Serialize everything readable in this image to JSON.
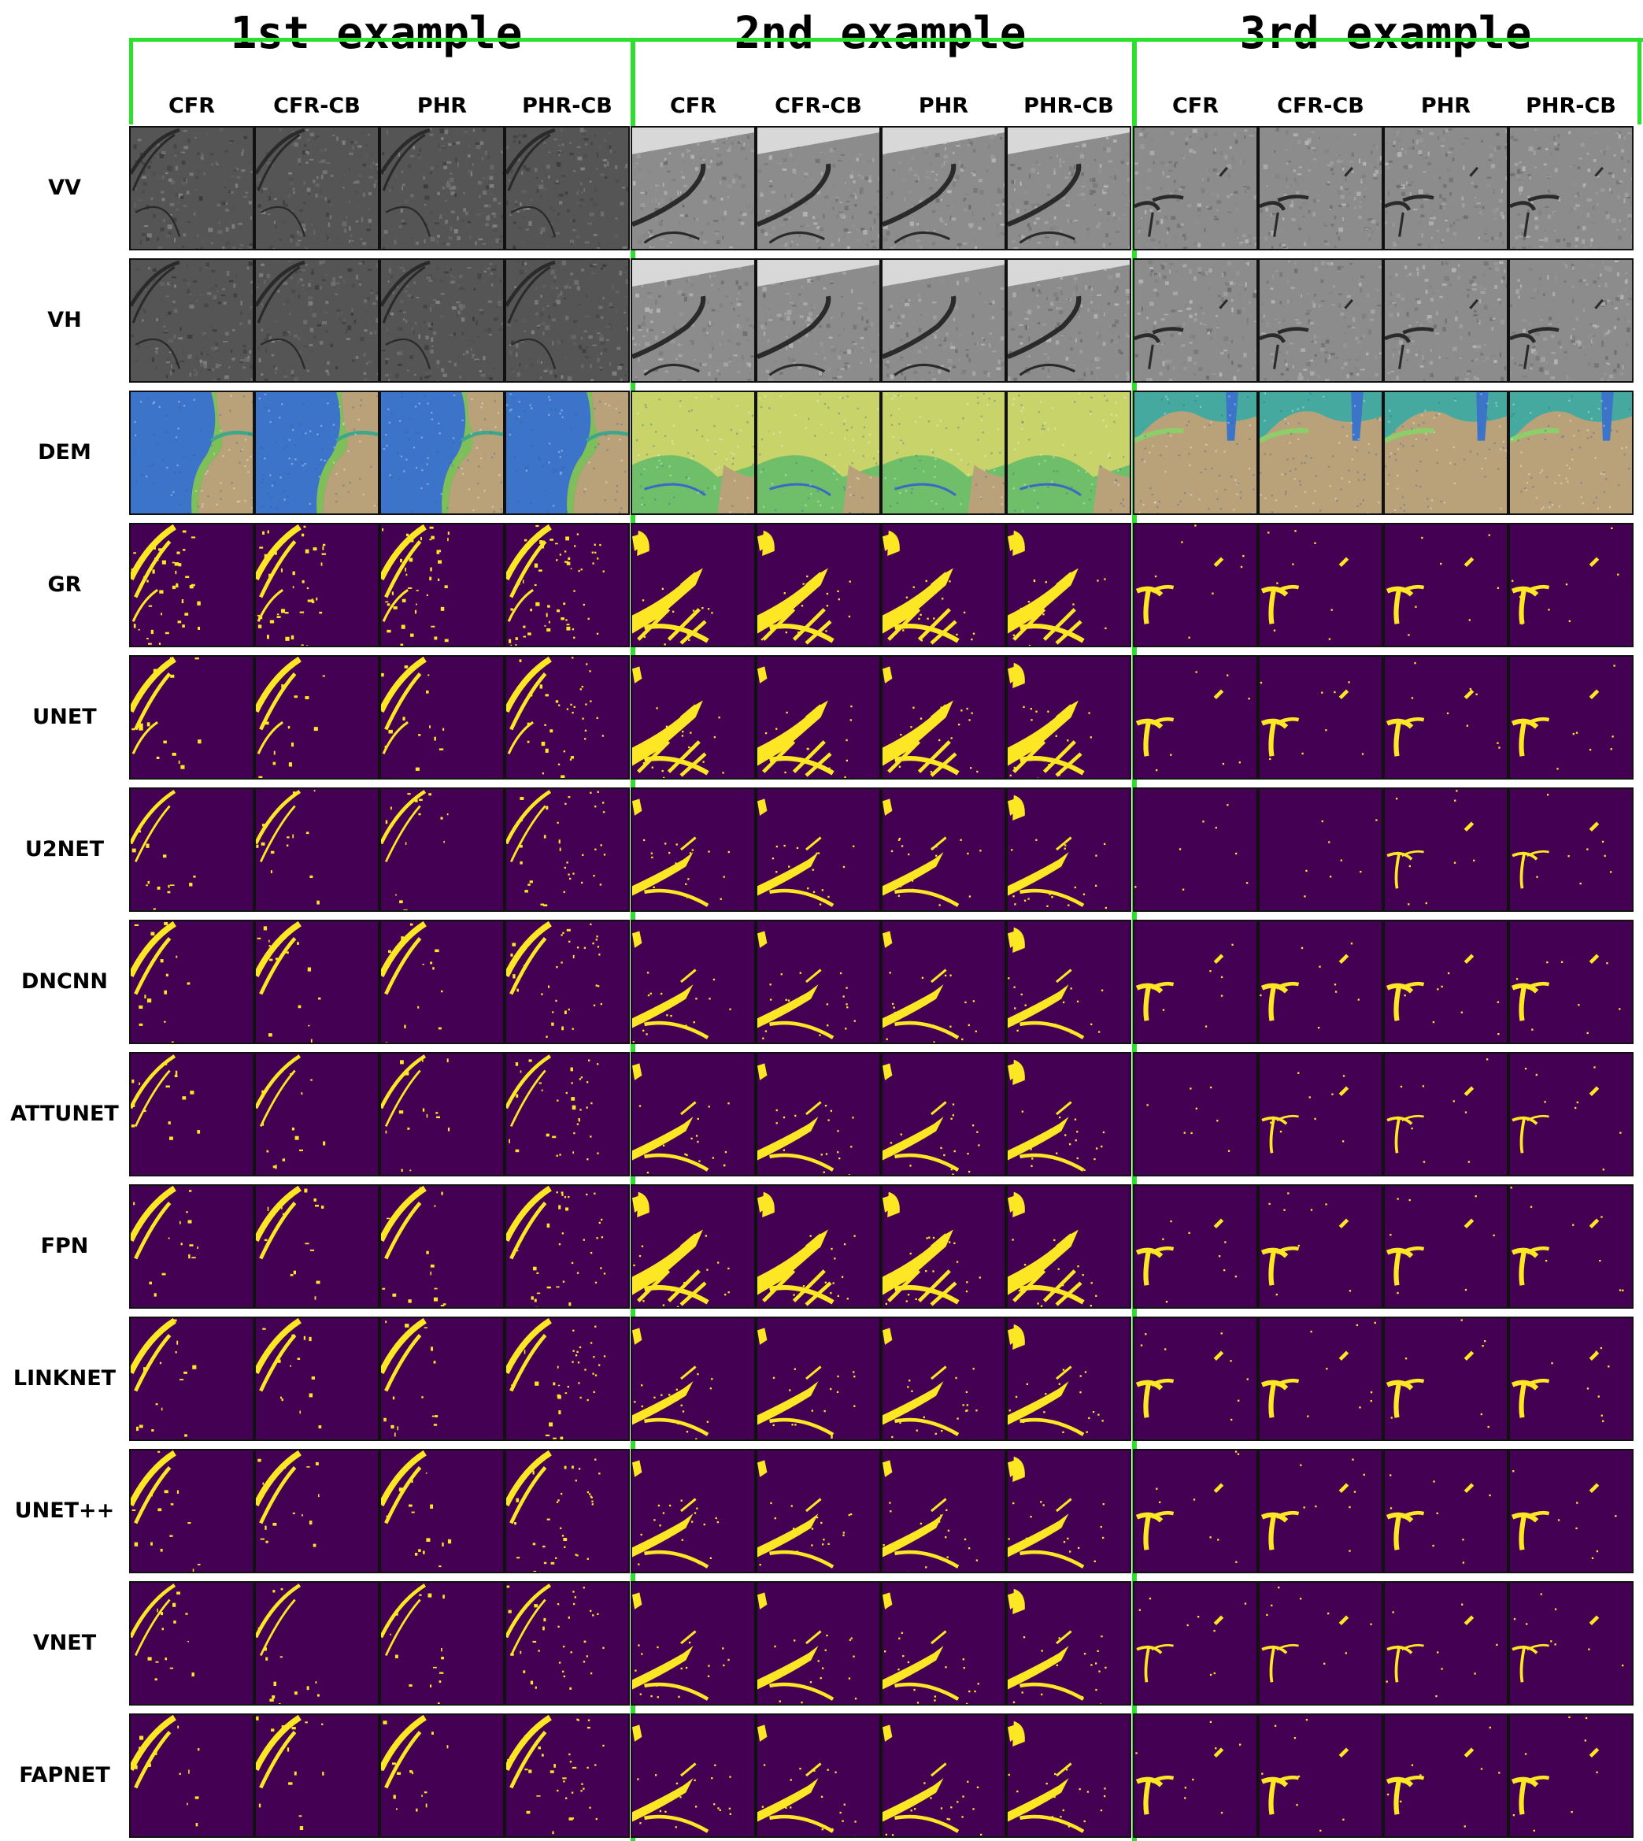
{
  "groups": [
    "1st example",
    "2nd example",
    "3rd example"
  ],
  "columns": [
    "CFR",
    "CFR-CB",
    "PHR",
    "PHR-CB"
  ],
  "rows": [
    "VV",
    "VH",
    "DEM",
    "GR",
    "UNET",
    "U2NET",
    "DNCNN",
    "ATTUNET",
    "FPN",
    "LINKNET",
    "UNET++",
    "VNET",
    "FAPNET"
  ],
  "colors": {
    "mask_background": "#440154",
    "mask_water": "#fde725",
    "sar_dark": "#3a3a3a",
    "sar_light": "#a8a8a8",
    "dem_low": "#3b74c9",
    "dem_mid": "#7fbf5a",
    "dem_high": "#b9a27a",
    "separator_line": "#2ee02e"
  }
}
